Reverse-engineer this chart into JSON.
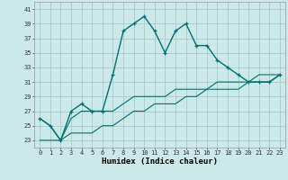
{
  "title": "",
  "xlabel": "Humidex (Indice chaleur)",
  "background_color": "#cce8e8",
  "grid_color": "#aacccc",
  "line_color": "#007070",
  "xlim": [
    -0.5,
    23.5
  ],
  "ylim": [
    22,
    42
  ],
  "yticks": [
    23,
    25,
    27,
    29,
    31,
    33,
    35,
    37,
    39,
    41
  ],
  "xticks": [
    0,
    1,
    2,
    3,
    4,
    5,
    6,
    7,
    8,
    9,
    10,
    11,
    12,
    13,
    14,
    15,
    16,
    17,
    18,
    19,
    20,
    21,
    22,
    23
  ],
  "series1": [
    26,
    25,
    23,
    27,
    28,
    27,
    27,
    32,
    38,
    39,
    40,
    38,
    35,
    38,
    39,
    36,
    36,
    34,
    33,
    32,
    31,
    31,
    31,
    32
  ],
  "series2": [
    26,
    25,
    23,
    26,
    27,
    27,
    27,
    27,
    28,
    29,
    29,
    29,
    29,
    30,
    30,
    30,
    30,
    31,
    31,
    31,
    31,
    32,
    32,
    32
  ],
  "series3": [
    23,
    23,
    23,
    24,
    24,
    24,
    25,
    25,
    26,
    27,
    27,
    28,
    28,
    28,
    29,
    29,
    30,
    30,
    30,
    30,
    31,
    31,
    31,
    32
  ]
}
